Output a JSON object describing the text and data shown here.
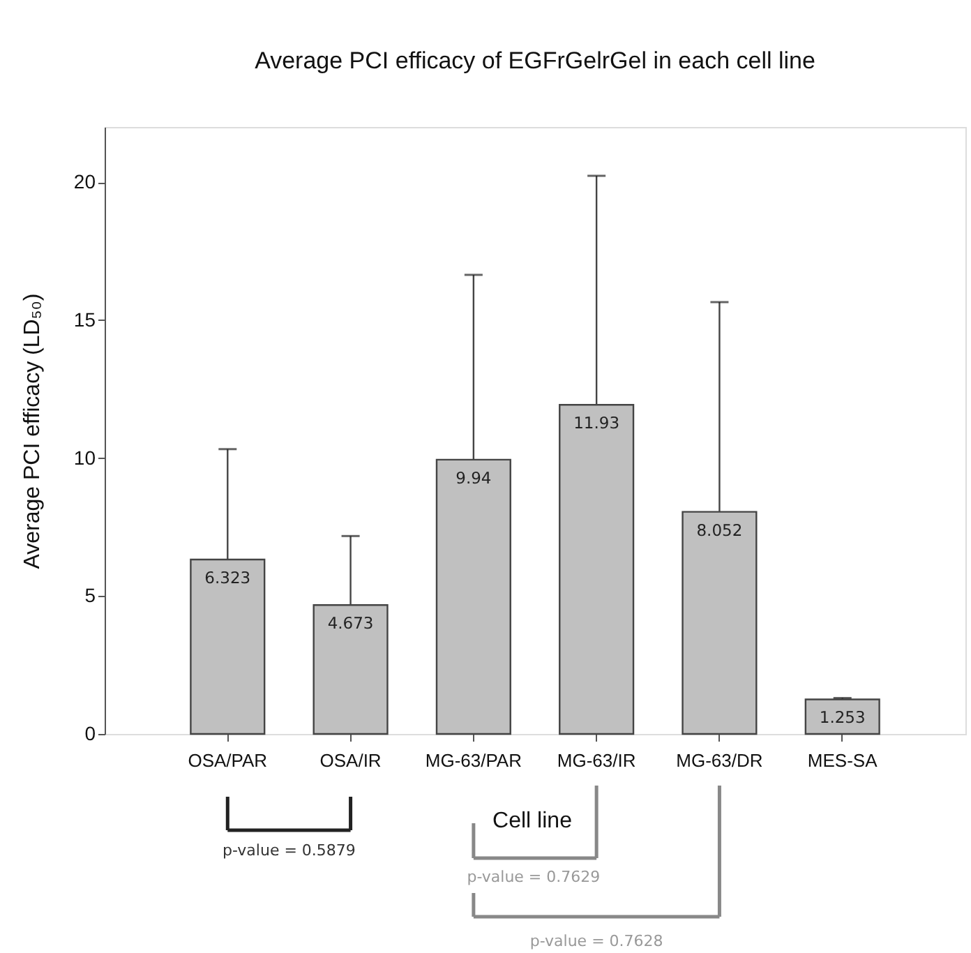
{
  "chart_data": {
    "type": "bar",
    "title": "Average PCI efficacy of EGFrGelrGel in each cell line",
    "xlabel": "Cell line",
    "ylabel": "Average PCI efficacy (LD₅₀)",
    "categories": [
      "OSA/PAR",
      "OSA/IR",
      "MG-63/PAR",
      "MG-63/IR",
      "MG-63/DR",
      "MES-SA"
    ],
    "values": [
      6.323,
      4.673,
      9.94,
      11.93,
      8.052,
      1.253
    ],
    "errors": [
      4.0,
      2.5,
      6.7,
      8.3,
      7.6,
      0.05
    ],
    "color": "#c0c0c0",
    "data_labels": true,
    "ylim": [
      0,
      22
    ],
    "yticks": [
      0,
      5,
      10,
      15,
      20
    ],
    "grid": false,
    "annotations": [
      "p-value = 0.5879",
      "p-value = 0.7629",
      "p-value = 0.7628"
    ]
  }
}
